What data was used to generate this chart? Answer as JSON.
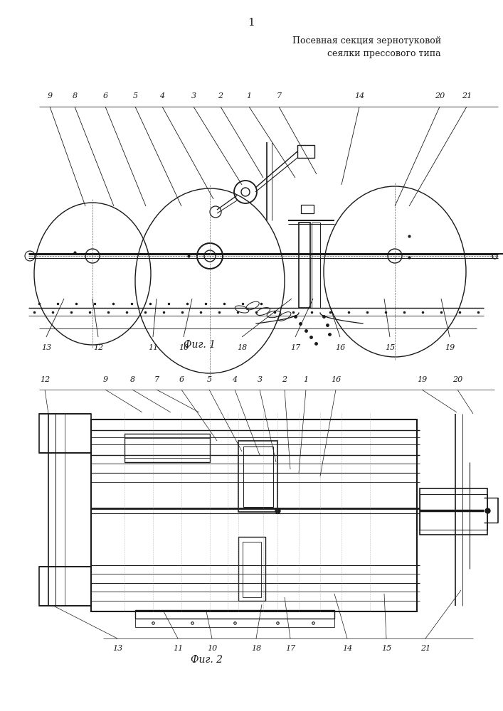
{
  "title_line1": "Посевная секция зернотуковой",
  "title_line2": "сеялки прессового типа",
  "page_number": "1",
  "fig1_caption": "Фиг. 1",
  "fig2_caption": "Фиг. 2",
  "line_color": "#1a1a1a",
  "bg_color": "#ffffff"
}
